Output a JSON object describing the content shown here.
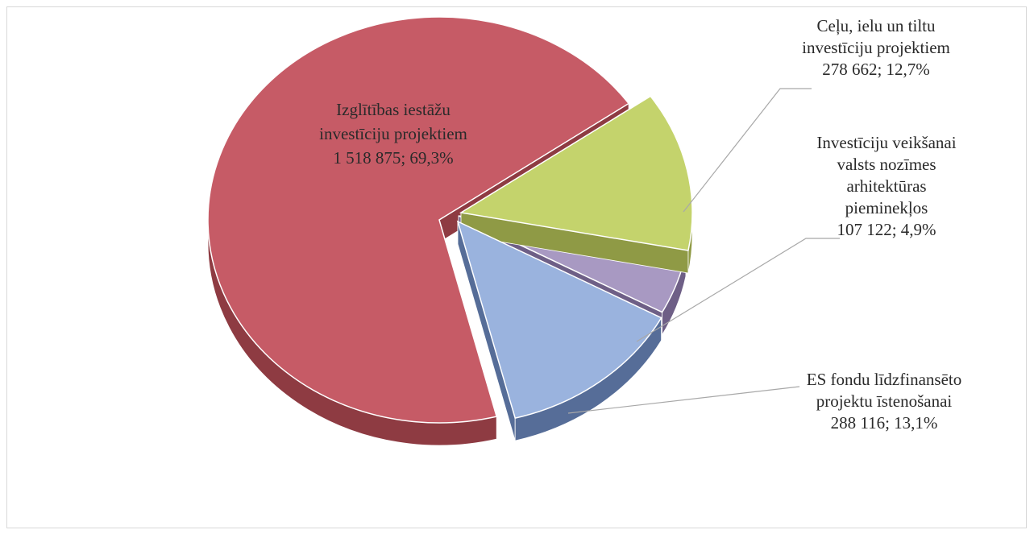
{
  "chart_data": {
    "type": "pie",
    "style": "3d-exploded",
    "title": "",
    "slices": [
      {
        "id": "education",
        "label_lines": [
          "Izglītības iestāžu",
          "investīciju projektiem"
        ],
        "value": 1518875,
        "value_text": "1 518 875; 69,3%",
        "percent": 69.3,
        "color": "#c65b66",
        "side_color": "#8e3b42"
      },
      {
        "id": "roads",
        "label_lines": [
          "Ceļu, ielu un tiltu",
          "investīciju projektiem"
        ],
        "value": 278662,
        "value_text": "278 662; 12,7%",
        "percent": 12.7,
        "color": "#c4d36c",
        "side_color": "#8f9a45"
      },
      {
        "id": "monuments",
        "label_lines": [
          "Investīciju veikšanai",
          "valsts nozīmes",
          "arhitektūras",
          "pieminekļos"
        ],
        "value": 107122,
        "value_text": "107 122; 4,9%",
        "percent": 4.9,
        "color": "#a899c2",
        "side_color": "#6e5f86"
      },
      {
        "id": "eu-funds",
        "label_lines": [
          "ES fondu līdzfinansēto",
          "projektu īstenošanai"
        ],
        "value": 288116,
        "value_text": "288 116; 13,1%",
        "percent": 13.1,
        "color": "#9ab3de",
        "side_color": "#566d98"
      }
    ]
  }
}
